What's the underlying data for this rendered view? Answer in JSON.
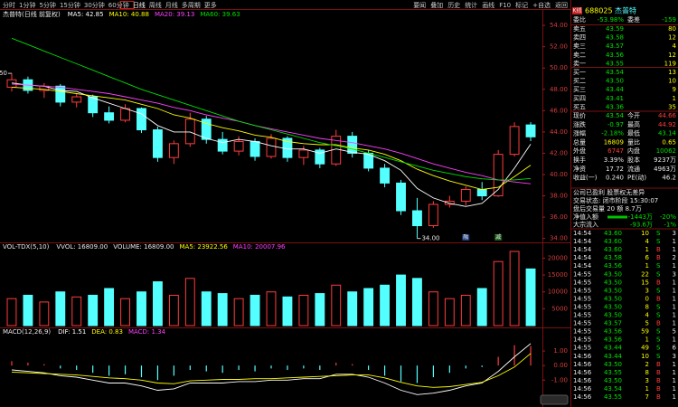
{
  "toolbar": {
    "periods": [
      "分时",
      "1分钟",
      "5分钟",
      "15分钟",
      "30分钟",
      "60分钟",
      "日线",
      "周线",
      "月线",
      "多周期",
      "更多"
    ],
    "tools": [
      "要闻",
      "叠加",
      "历史",
      "统计",
      "画线",
      "F10",
      "标记",
      "+自选",
      "返回"
    ]
  },
  "chart_data": [
    {
      "type": "candlestick",
      "title": "杰普特(日线 前复权)",
      "up_color": "#ff3c3c",
      "down_color": "#54ffff",
      "open": [
        48.2,
        48.9,
        47.9,
        48.3,
        46.8,
        47.3,
        45.8,
        45.1,
        46.2,
        44.2,
        41.6,
        42.9,
        45.2,
        43.3,
        42.2,
        43.1,
        41.7,
        43.4,
        41.6,
        42.3,
        41.0,
        43.6,
        42.0,
        40.6,
        39.2,
        36.6,
        35.2,
        37.2,
        37.5,
        38.6,
        38.0,
        41.9,
        44.66
      ],
      "high": [
        49.5,
        49.2,
        48.6,
        48.5,
        47.6,
        47.5,
        46.4,
        46.6,
        46.3,
        44.5,
        43.2,
        45.8,
        45.5,
        44.0,
        43.6,
        43.4,
        43.8,
        43.6,
        42.7,
        42.5,
        44.2,
        44.0,
        42.3,
        41.0,
        39.5,
        37.8,
        37.5,
        38.0,
        38.9,
        39.3,
        42.3,
        44.9,
        44.92
      ],
      "low": [
        47.8,
        47.6,
        47.2,
        46.4,
        46.3,
        45.4,
        44.8,
        44.9,
        43.9,
        41.2,
        41.0,
        42.6,
        42.9,
        41.9,
        41.8,
        41.3,
        41.5,
        41.2,
        40.9,
        40.6,
        40.8,
        41.6,
        40.3,
        38.8,
        36.2,
        34.0,
        35.0,
        36.9,
        37.1,
        37.6,
        37.9,
        41.7,
        43.14
      ],
      "close": [
        48.9,
        47.9,
        48.3,
        46.8,
        47.3,
        45.8,
        45.1,
        46.2,
        44.2,
        41.6,
        42.9,
        45.2,
        43.3,
        42.2,
        43.1,
        41.7,
        43.4,
        41.6,
        42.3,
        41.0,
        43.6,
        42.0,
        40.6,
        39.2,
        36.6,
        35.2,
        37.2,
        37.5,
        38.6,
        38.0,
        41.9,
        44.51,
        43.54
      ],
      "series": [
        {
          "name": "MA5: 42.85",
          "color": "#ffffff",
          "values": [
            48.6,
            48.4,
            48.3,
            47.9,
            47.8,
            47.2,
            46.7,
            46.2,
            45.7,
            44.6,
            44.0,
            44.0,
            43.4,
            43.0,
            43.3,
            43.1,
            42.7,
            42.4,
            42.4,
            42.0,
            42.4,
            42.1,
            41.9,
            41.3,
            40.4,
            38.7,
            37.8,
            37.3,
            37.0,
            37.3,
            38.6,
            40.6,
            42.85
          ]
        },
        {
          "name": "MA10: 40.88",
          "color": "#ffff00",
          "values": [
            48.2,
            48.1,
            48.0,
            47.8,
            47.6,
            47.4,
            47.2,
            47.0,
            46.6,
            46.2,
            45.6,
            45.3,
            44.8,
            44.4,
            44.1,
            43.7,
            43.5,
            43.1,
            42.9,
            42.8,
            42.8,
            42.5,
            42.3,
            41.9,
            41.3,
            40.5,
            39.9,
            39.4,
            39.0,
            38.6,
            38.8,
            39.8,
            40.88
          ]
        },
        {
          "name": "MA20: 39.13",
          "color": "#ff40ff",
          "values": [
            48.5,
            48.4,
            48.3,
            48.2,
            48.0,
            47.8,
            47.6,
            47.3,
            47.0,
            46.7,
            46.3,
            46.0,
            45.6,
            45.3,
            45.0,
            44.6,
            44.3,
            44.0,
            43.7,
            43.4,
            43.2,
            43.0,
            42.7,
            42.4,
            42.0,
            41.5,
            41.0,
            40.6,
            40.2,
            39.9,
            39.5,
            39.3,
            39.13
          ]
        },
        {
          "name": "MA60: 39.63",
          "color": "#00e000",
          "values": [
            52.8,
            52.2,
            51.6,
            51.0,
            50.4,
            49.8,
            49.2,
            48.6,
            48.0,
            47.5,
            47.0,
            46.5,
            46.0,
            45.5,
            45.0,
            44.6,
            44.2,
            43.8,
            43.4,
            43.0,
            42.7,
            42.4,
            42.0,
            41.6,
            41.2,
            40.8,
            40.4,
            40.1,
            39.8,
            39.6,
            39.5,
            39.5,
            39.63
          ]
        }
      ],
      "annotations": [
        {
          "value": 49.5,
          "label": "49.50"
        },
        {
          "value": 34,
          "label": "34.00"
        }
      ],
      "flags": [
        "融",
        "减"
      ],
      "ylim": [
        33.8,
        55.2
      ],
      "yticks": [
        {
          "value": 34,
          "label": "34.00"
        },
        {
          "value": 36,
          "label": "36.00"
        },
        {
          "value": 38,
          "label": "38.00"
        },
        {
          "value": 40,
          "label": "40.00"
        },
        {
          "value": 42,
          "label": "42.00"
        },
        {
          "value": 44,
          "label": "44.00"
        },
        {
          "value": 46,
          "label": "46.00"
        },
        {
          "value": 48,
          "label": "48.00"
        },
        {
          "value": 50,
          "label": "50.00"
        },
        {
          "value": 52,
          "label": "52.00"
        },
        {
          "value": 54,
          "label": "54.00"
        }
      ]
    },
    {
      "type": "bar",
      "title": "VOL-TDX(5,10)",
      "legend": [
        "VVOL: 16809.00",
        "VOLUME: 16809.00",
        "MA5: 23922.56",
        "MA10: 20007.96"
      ],
      "values": [
        8000,
        9000,
        7000,
        10000,
        8500,
        9000,
        11000,
        8000,
        10000,
        13000,
        9000,
        14000,
        10000,
        9500,
        8000,
        9000,
        10000,
        8500,
        9000,
        9500,
        12000,
        10000,
        11000,
        12000,
        15000,
        14000,
        10000,
        8000,
        9000,
        11000,
        19000,
        22000,
        16809
      ],
      "ylim": [
        0,
        22000
      ],
      "yticks": [
        5000,
        10000,
        15000,
        20000
      ]
    },
    {
      "type": "macd",
      "title": "MACD(12,26,9)",
      "legend": [
        "MACD: 1.34"
      ],
      "values": [
        0.3,
        0.2,
        0.1,
        -0.2,
        -0.3,
        -0.5,
        -0.7,
        -0.6,
        -0.8,
        -1.0,
        -0.7,
        -0.3,
        -0.4,
        -0.5,
        -0.3,
        -0.4,
        -0.2,
        -0.3,
        -0.2,
        -0.3,
        0.2,
        0.1,
        -0.3,
        -0.7,
        -1.1,
        -1.2,
        -0.8,
        -0.5,
        -0.2,
        -0.1,
        0.6,
        1.4,
        1.34
      ],
      "series": [
        {
          "name": "DIF: 1.51",
          "color": "#ffffff",
          "values": [
            -0.3,
            -0.4,
            -0.5,
            -0.7,
            -0.8,
            -1.0,
            -1.2,
            -1.2,
            -1.4,
            -1.7,
            -1.6,
            -1.2,
            -1.2,
            -1.2,
            -1.1,
            -1.1,
            -1.0,
            -1.0,
            -0.9,
            -0.9,
            -0.6,
            -0.6,
            -0.8,
            -1.2,
            -1.7,
            -2.0,
            -1.9,
            -1.7,
            -1.4,
            -1.2,
            -0.4,
            0.6,
            1.51
          ]
        },
        {
          "name": "DEA: 0.83",
          "color": "#ffff00",
          "values": [
            -0.45,
            -0.5,
            -0.55,
            -0.6,
            -0.65,
            -0.75,
            -0.85,
            -0.9,
            -1.0,
            -1.2,
            -1.25,
            -1.05,
            -1.0,
            -0.95,
            -0.95,
            -0.9,
            -0.9,
            -0.85,
            -0.8,
            -0.75,
            -0.7,
            -0.65,
            -0.65,
            -0.85,
            -1.15,
            -1.4,
            -1.5,
            -1.45,
            -1.3,
            -1.15,
            -0.7,
            -0.1,
            0.83
          ]
        }
      ],
      "ylim": [
        -2.6,
        2.0
      ],
      "yticks": [
        {
          "value": -1,
          "label": "-1.00"
        },
        {
          "value": 0,
          "label": "0.00"
        },
        {
          "value": 1,
          "label": "1.00"
        }
      ]
    }
  ],
  "quote": {
    "kline": "K线",
    "code": "688025",
    "name": "杰普特",
    "ratio": [
      "委比",
      "-53.98%",
      "委差",
      "-159"
    ],
    "asks": [
      [
        "卖五",
        "43.59",
        "80"
      ],
      [
        "卖四",
        "43.58",
        "12"
      ],
      [
        "卖三",
        "43.57",
        "4"
      ],
      [
        "卖二",
        "43.56",
        "12"
      ],
      [
        "卖一",
        "43.55",
        "119"
      ]
    ],
    "bids": [
      [
        "买一",
        "43.54",
        "13"
      ],
      [
        "买二",
        "43.50",
        "10"
      ],
      [
        "买三",
        "43.44",
        "9"
      ],
      [
        "买四",
        "43.41",
        "1"
      ],
      [
        "买五",
        "43.36",
        "35"
      ]
    ],
    "stats": [
      [
        "现价",
        "43.54",
        "今开",
        "44.66"
      ],
      [
        "涨跌",
        "-0.97",
        "最高",
        "44.92"
      ],
      [
        "涨幅",
        "-2.18%",
        "最低",
        "43.14"
      ],
      [
        "总量",
        "16809",
        "量比",
        "0.65"
      ],
      [
        "外盘",
        "6747",
        "内盘",
        "10062"
      ],
      [
        "换手",
        "3.39%",
        "股本",
        "9237万"
      ],
      [
        "净资",
        "17.72",
        "流通",
        "4963万"
      ],
      [
        "收益(一)",
        "0.240",
        "PE(动)",
        "46.2"
      ]
    ],
    "notes": [
      "公司已盈利 股票权无差异",
      "交易状态: 闭市阶段 15:30:07",
      "盘后交易量 20 额 8.7万"
    ],
    "flows": [
      [
        "净值入额",
        "-1443万",
        "-20%"
      ],
      [
        "大宗流入",
        "-93.6万",
        "-1%"
      ]
    ],
    "ticks": [
      [
        "14:54",
        "43.60",
        "10",
        "S",
        "3"
      ],
      [
        "14:54",
        "43.60",
        "4",
        "S",
        "1"
      ],
      [
        "14:54",
        "43.60",
        "1",
        "B",
        "1"
      ],
      [
        "14:54",
        "43.58",
        "6",
        "B",
        "2"
      ],
      [
        "14:54",
        "43.56",
        "1",
        "S",
        "1"
      ],
      [
        "14:55",
        "43.50",
        "22",
        "S",
        "3"
      ],
      [
        "14:55",
        "43.50",
        "15",
        "B",
        "1"
      ],
      [
        "14:55",
        "43.50",
        "3",
        "S",
        "1"
      ],
      [
        "14:55",
        "43.50",
        "0",
        "B",
        "1"
      ],
      [
        "14:55",
        "43.50",
        "8",
        "S",
        "1"
      ],
      [
        "14:55",
        "43.50",
        "4",
        "S",
        "1"
      ],
      [
        "14:55",
        "43.57",
        "5",
        "B",
        "1"
      ],
      [
        "14:55",
        "43.56",
        "59",
        "S",
        "5"
      ],
      [
        "14:55",
        "43.56",
        "1",
        "S",
        "1"
      ],
      [
        "14:55",
        "43.44",
        "49",
        "S",
        "6"
      ],
      [
        "14:56",
        "43.44",
        "10",
        "S",
        "3"
      ],
      [
        "14:56",
        "43.50",
        "2",
        "B",
        "1"
      ],
      [
        "14:56",
        "43.55",
        "8",
        "B",
        "1"
      ],
      [
        "14:56",
        "43.50",
        "3",
        "B",
        "1"
      ],
      [
        "14:56",
        "43.54",
        "1",
        "B",
        "1"
      ],
      [
        "14:56",
        "43.55",
        "7",
        "B",
        "1"
      ]
    ]
  }
}
